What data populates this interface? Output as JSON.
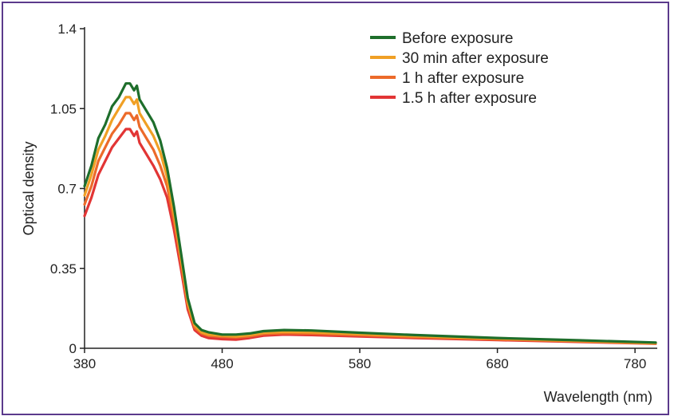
{
  "chart_data": {
    "type": "line",
    "title": "",
    "xlabel": "Wavelength (nm)",
    "ylabel": "Optical density",
    "xlim": [
      380,
      795
    ],
    "ylim": [
      0,
      1.4
    ],
    "xticks": [
      380,
      480,
      580,
      680,
      780
    ],
    "yticks": [
      0,
      0.35,
      0.7,
      1.05,
      1.4
    ],
    "ytick_labels": [
      "0",
      "0.35",
      "0.7",
      "1.05",
      "1.4"
    ],
    "grid": false,
    "legend_position": "top-right",
    "series": [
      {
        "name": "Before exposure",
        "color": "#1e6e2b",
        "points": [
          [
            380,
            0.71
          ],
          [
            385,
            0.8
          ],
          [
            390,
            0.92
          ],
          [
            395,
            0.98
          ],
          [
            400,
            1.06
          ],
          [
            405,
            1.1
          ],
          [
            410,
            1.16
          ],
          [
            413,
            1.16
          ],
          [
            416,
            1.13
          ],
          [
            418,
            1.15
          ],
          [
            420,
            1.09
          ],
          [
            425,
            1.04
          ],
          [
            430,
            0.99
          ],
          [
            435,
            0.91
          ],
          [
            440,
            0.79
          ],
          [
            445,
            0.62
          ],
          [
            450,
            0.42
          ],
          [
            455,
            0.22
          ],
          [
            460,
            0.11
          ],
          [
            465,
            0.08
          ],
          [
            470,
            0.07
          ],
          [
            480,
            0.06
          ],
          [
            490,
            0.06
          ],
          [
            500,
            0.065
          ],
          [
            510,
            0.075
          ],
          [
            525,
            0.08
          ],
          [
            545,
            0.078
          ],
          [
            580,
            0.068
          ],
          [
            620,
            0.058
          ],
          [
            680,
            0.045
          ],
          [
            740,
            0.035
          ],
          [
            795,
            0.025
          ]
        ]
      },
      {
        "name": "30 min after exposure",
        "color": "#f0a025",
        "points": [
          [
            380,
            0.67
          ],
          [
            385,
            0.76
          ],
          [
            390,
            0.87
          ],
          [
            395,
            0.93
          ],
          [
            400,
            1.0
          ],
          [
            405,
            1.05
          ],
          [
            410,
            1.1
          ],
          [
            413,
            1.1
          ],
          [
            416,
            1.07
          ],
          [
            418,
            1.09
          ],
          [
            420,
            1.03
          ],
          [
            425,
            0.98
          ],
          [
            430,
            0.93
          ],
          [
            435,
            0.86
          ],
          [
            440,
            0.75
          ],
          [
            445,
            0.59
          ],
          [
            450,
            0.4
          ],
          [
            455,
            0.2
          ],
          [
            460,
            0.1
          ],
          [
            465,
            0.07
          ],
          [
            470,
            0.06
          ],
          [
            480,
            0.055
          ],
          [
            490,
            0.052
          ],
          [
            500,
            0.058
          ],
          [
            510,
            0.068
          ],
          [
            525,
            0.072
          ],
          [
            545,
            0.07
          ],
          [
            580,
            0.062
          ],
          [
            620,
            0.053
          ],
          [
            680,
            0.042
          ],
          [
            740,
            0.032
          ],
          [
            795,
            0.022
          ]
        ]
      },
      {
        "name": "1 h after exposure",
        "color": "#ec6a2a",
        "points": [
          [
            380,
            0.63
          ],
          [
            385,
            0.71
          ],
          [
            390,
            0.82
          ],
          [
            395,
            0.88
          ],
          [
            400,
            0.94
          ],
          [
            405,
            0.98
          ],
          [
            410,
            1.03
          ],
          [
            413,
            1.03
          ],
          [
            416,
            1.0
          ],
          [
            418,
            1.02
          ],
          [
            420,
            0.97
          ],
          [
            425,
            0.92
          ],
          [
            430,
            0.87
          ],
          [
            435,
            0.8
          ],
          [
            440,
            0.71
          ],
          [
            445,
            0.56
          ],
          [
            450,
            0.38
          ],
          [
            455,
            0.19
          ],
          [
            460,
            0.09
          ],
          [
            465,
            0.065
          ],
          [
            470,
            0.055
          ],
          [
            480,
            0.05
          ],
          [
            490,
            0.048
          ],
          [
            500,
            0.052
          ],
          [
            510,
            0.062
          ],
          [
            525,
            0.066
          ],
          [
            545,
            0.064
          ],
          [
            580,
            0.057
          ],
          [
            620,
            0.049
          ],
          [
            680,
            0.039
          ],
          [
            740,
            0.03
          ],
          [
            795,
            0.021
          ]
        ]
      },
      {
        "name": "1.5 h after exposure",
        "color": "#e23535",
        "points": [
          [
            380,
            0.58
          ],
          [
            385,
            0.66
          ],
          [
            390,
            0.76
          ],
          [
            395,
            0.82
          ],
          [
            400,
            0.88
          ],
          [
            405,
            0.92
          ],
          [
            410,
            0.96
          ],
          [
            413,
            0.96
          ],
          [
            416,
            0.93
          ],
          [
            418,
            0.95
          ],
          [
            420,
            0.9
          ],
          [
            425,
            0.85
          ],
          [
            430,
            0.8
          ],
          [
            435,
            0.74
          ],
          [
            440,
            0.66
          ],
          [
            445,
            0.52
          ],
          [
            450,
            0.35
          ],
          [
            455,
            0.17
          ],
          [
            460,
            0.08
          ],
          [
            465,
            0.055
          ],
          [
            470,
            0.045
          ],
          [
            480,
            0.04
          ],
          [
            490,
            0.038
          ],
          [
            500,
            0.045
          ],
          [
            510,
            0.055
          ],
          [
            525,
            0.06
          ],
          [
            545,
            0.058
          ],
          [
            580,
            0.052
          ],
          [
            620,
            0.045
          ],
          [
            680,
            0.036
          ],
          [
            740,
            0.028
          ],
          [
            795,
            0.02
          ]
        ]
      }
    ]
  }
}
